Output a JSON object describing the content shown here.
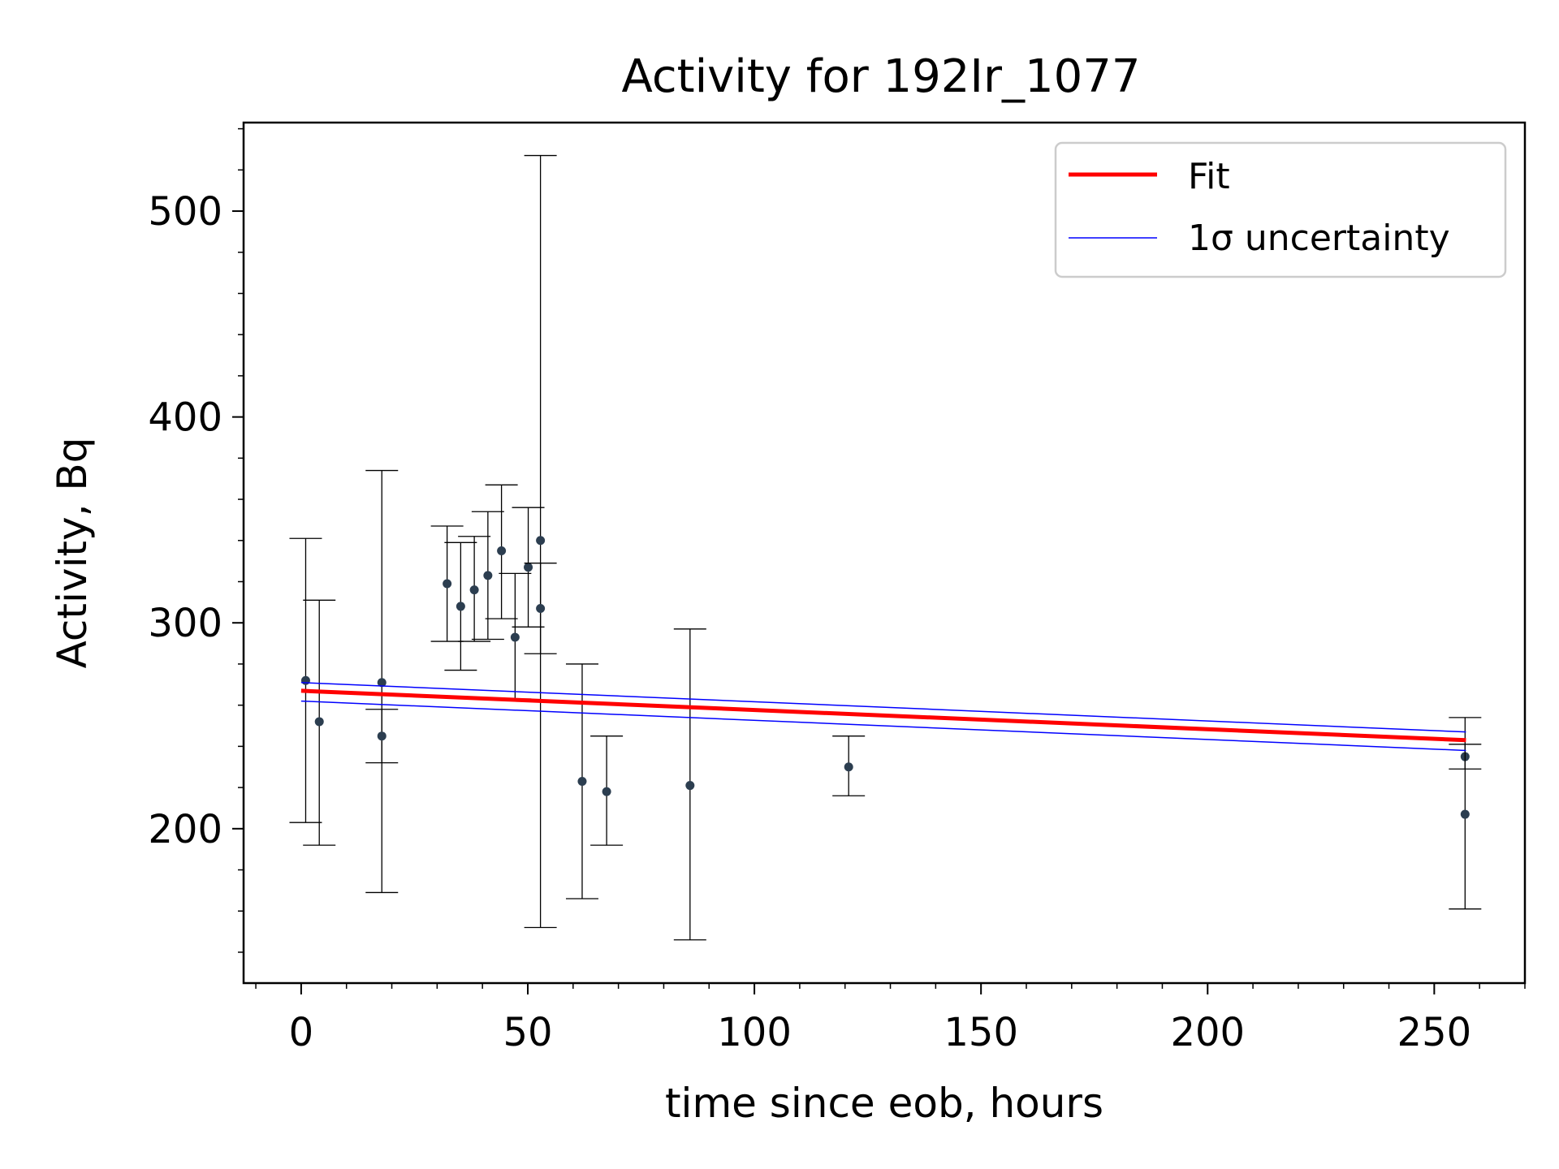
{
  "chart_data": {
    "type": "scatter",
    "title": "Activity for 192Ir_1077",
    "xlabel": "time since eob, hours",
    "ylabel": "Activity, Bq",
    "xlim": [
      -12.7,
      270
    ],
    "ylim": [
      125,
      543
    ],
    "x_ticks": [
      0,
      50,
      100,
      150,
      200,
      250
    ],
    "x_tick_labels": [
      "0",
      "50",
      "100",
      "150",
      "200",
      "250"
    ],
    "y_ticks": [
      200,
      300,
      400,
      500
    ],
    "y_tick_labels": [
      "200",
      "300",
      "400",
      "500"
    ],
    "grid": false,
    "legend_position": "top-right",
    "legend": [
      {
        "label": "Fit",
        "color": "#ff0000"
      },
      {
        "label": "1σ uncertainty",
        "color": "#0000ff"
      }
    ],
    "point_color": "#2c3e50",
    "errorbar_color": "#000000",
    "points": [
      {
        "x": 1.0,
        "y": 272,
        "ylo": 203,
        "yhi": 341
      },
      {
        "x": 4.0,
        "y": 252,
        "ylo": 192,
        "yhi": 311
      },
      {
        "x": 17.8,
        "y": 271,
        "ylo": 169,
        "yhi": 374
      },
      {
        "x": 17.8,
        "y": 245,
        "ylo": 232,
        "yhi": 258
      },
      {
        "x": 32.2,
        "y": 319,
        "ylo": 291,
        "yhi": 347
      },
      {
        "x": 35.2,
        "y": 308,
        "ylo": 277,
        "yhi": 339
      },
      {
        "x": 38.2,
        "y": 316,
        "ylo": 291,
        "yhi": 342
      },
      {
        "x": 41.2,
        "y": 323,
        "ylo": 292,
        "yhi": 354
      },
      {
        "x": 44.2,
        "y": 335,
        "ylo": 302,
        "yhi": 367
      },
      {
        "x": 47.2,
        "y": 293,
        "ylo": 263,
        "yhi": 324
      },
      {
        "x": 50.1,
        "y": 327,
        "ylo": 298,
        "yhi": 356
      },
      {
        "x": 52.8,
        "y": 340,
        "ylo": 152,
        "yhi": 527
      },
      {
        "x": 52.8,
        "y": 307,
        "ylo": 285,
        "yhi": 329
      },
      {
        "x": 62.0,
        "y": 223,
        "ylo": 166,
        "yhi": 280
      },
      {
        "x": 67.4,
        "y": 218,
        "ylo": 192,
        "yhi": 245
      },
      {
        "x": 85.8,
        "y": 221,
        "ylo": 146,
        "yhi": 297
      },
      {
        "x": 120.8,
        "y": 230,
        "ylo": 216,
        "yhi": 245
      },
      {
        "x": 256.8,
        "y": 235,
        "ylo": 229,
        "yhi": 241
      },
      {
        "x": 256.8,
        "y": 207,
        "ylo": 161,
        "yhi": 254
      }
    ],
    "fit": {
      "x": [
        0,
        257
      ],
      "y": [
        267,
        243
      ],
      "color": "#ff0000"
    },
    "uncertainty_upper": {
      "x": [
        0,
        257
      ],
      "y": [
        271,
        247
      ],
      "color": "#0000ff"
    },
    "uncertainty_lower": {
      "x": [
        0,
        257
      ],
      "y": [
        262,
        238
      ],
      "color": "#0000ff"
    }
  }
}
